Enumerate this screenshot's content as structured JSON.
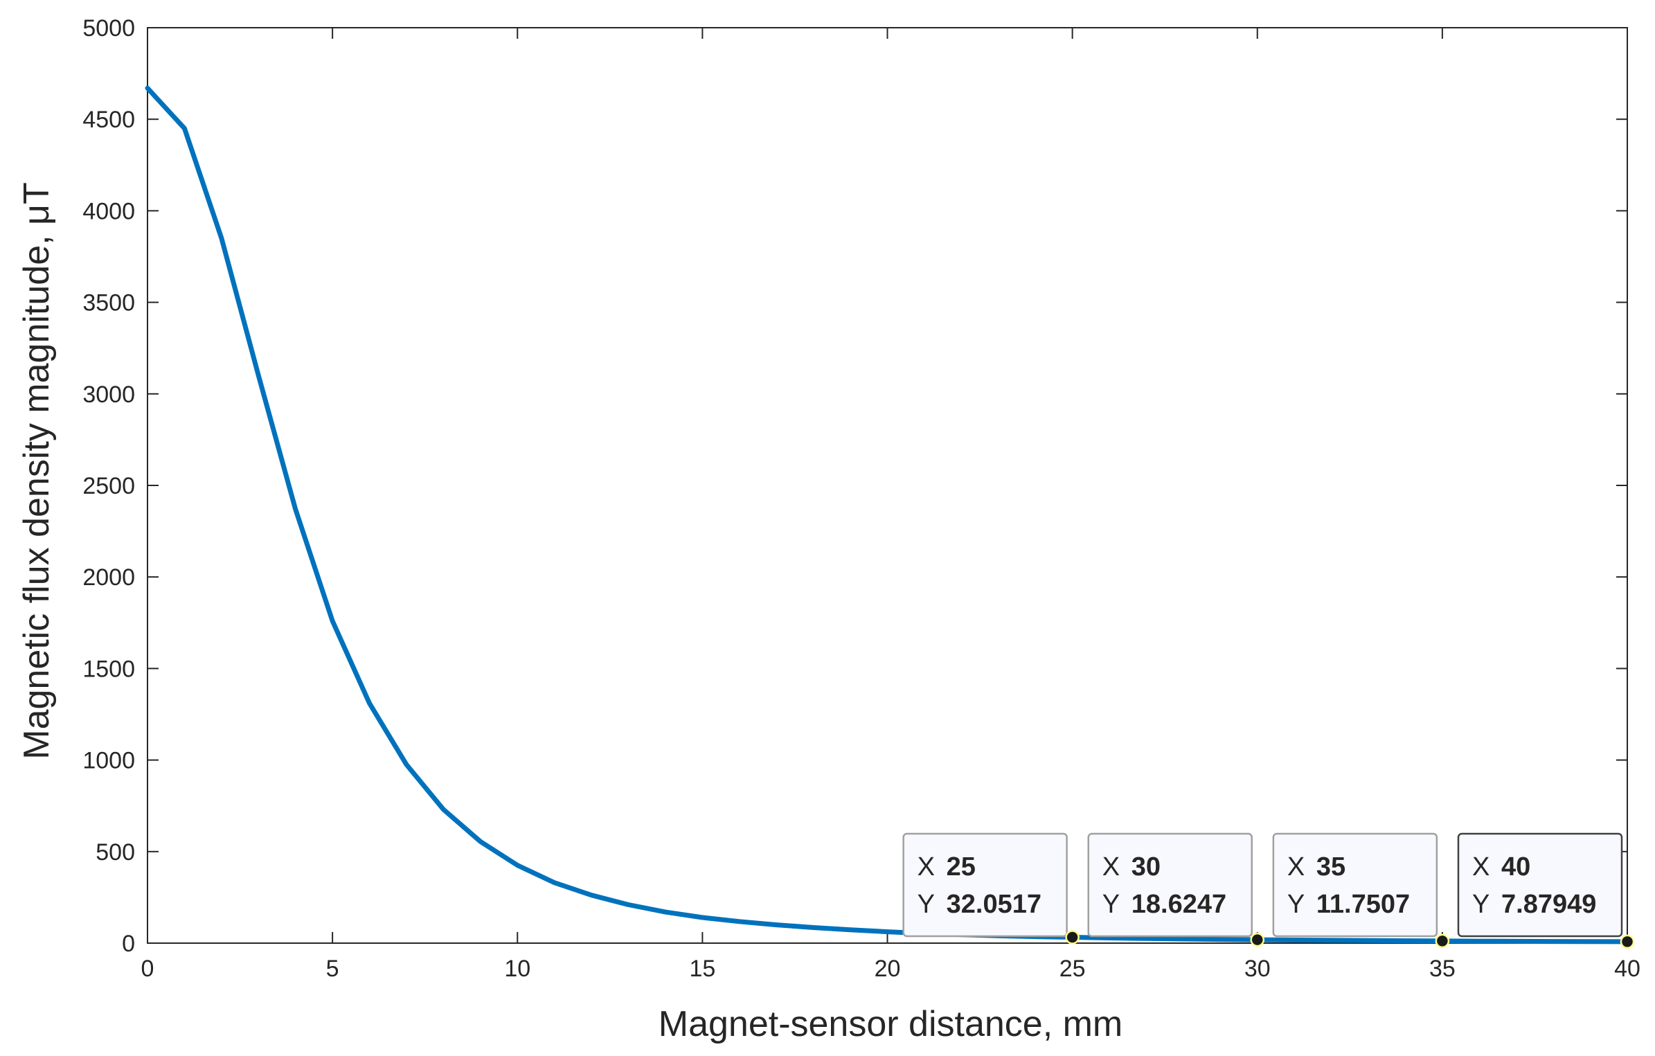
{
  "chart_data": {
    "type": "line",
    "title": "",
    "xlabel": "Magnet-sensor distance, mm",
    "ylabel": "Magnetic flux density magnitude, μT",
    "xlim": [
      0,
      40
    ],
    "ylim": [
      0,
      5000
    ],
    "xticks": [
      0,
      5,
      10,
      15,
      20,
      25,
      30,
      35,
      40
    ],
    "yticks": [
      0,
      500,
      1000,
      1500,
      2000,
      2500,
      3000,
      3500,
      4000,
      4500,
      5000
    ],
    "grid": false,
    "series": [
      {
        "color": "#0072BD",
        "x": [
          0,
          1,
          2,
          3,
          4,
          5,
          6,
          7,
          8,
          9,
          10,
          11,
          12,
          13,
          14,
          15,
          16,
          17,
          18,
          19,
          20,
          21,
          22,
          23,
          24,
          25,
          26,
          27,
          28,
          29,
          30,
          31,
          32,
          33,
          34,
          35,
          36,
          37,
          38,
          39,
          40
        ],
        "y": [
          4670,
          4450,
          3850,
          3100,
          2370,
          1760,
          1310,
          975,
          730,
          555,
          425,
          330,
          262,
          210,
          170,
          140,
          118,
          100,
          85,
          73,
          62,
          53,
          46,
          40,
          35.5,
          32.05,
          28.5,
          25.4,
          22.7,
          20.5,
          18.62,
          17.0,
          15.6,
          14.3,
          13.0,
          11.75,
          10.7,
          9.8,
          9.0,
          8.4,
          7.88
        ]
      }
    ],
    "datatips": [
      {
        "x_label": "X",
        "y_label": "Y",
        "x_value": "25",
        "y_value": "32.0517",
        "x": 25,
        "y": 32.0517
      },
      {
        "x_label": "X",
        "y_label": "Y",
        "x_value": "30",
        "y_value": "18.6247",
        "x": 30,
        "y": 18.6247
      },
      {
        "x_label": "X",
        "y_label": "Y",
        "x_value": "35",
        "y_value": "11.7507",
        "x": 35,
        "y": 11.7507
      },
      {
        "x_label": "X",
        "y_label": "Y",
        "x_value": "40",
        "y_value": "7.87949",
        "x": 40,
        "y": 7.87949
      }
    ],
    "colors": {
      "axes": "#262626",
      "datatip_value": "#0096FF",
      "datatip_background": "#F8F8FF",
      "datatip_border": "#A0A0A0",
      "datatip_border_active": "#404040"
    }
  }
}
